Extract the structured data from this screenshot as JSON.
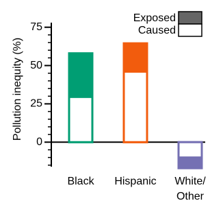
{
  "chart_data": {
    "type": "overlaid-bar",
    "ylabel": "Pollution inequity (%)",
    "categories": [
      "Black",
      "Hispanic",
      "White/\nOther"
    ],
    "colors": [
      "#009e73",
      "#f25c0d",
      "#7570b3"
    ],
    "series": [
      {
        "name": "Exposed",
        "color": "#666666",
        "values": [
          58,
          64.5,
          -17
        ]
      },
      {
        "name": "Caused",
        "color": "#ffffff",
        "values": [
          29.5,
          46,
          -10
        ]
      }
    ],
    "ylim": [
      -16,
      78
    ],
    "yticks": [
      0,
      25,
      50,
      75
    ],
    "yminorticks": [
      -15,
      -10,
      -5,
      5,
      10,
      15,
      20,
      30,
      35,
      40,
      45,
      55,
      60,
      65,
      70
    ]
  }
}
